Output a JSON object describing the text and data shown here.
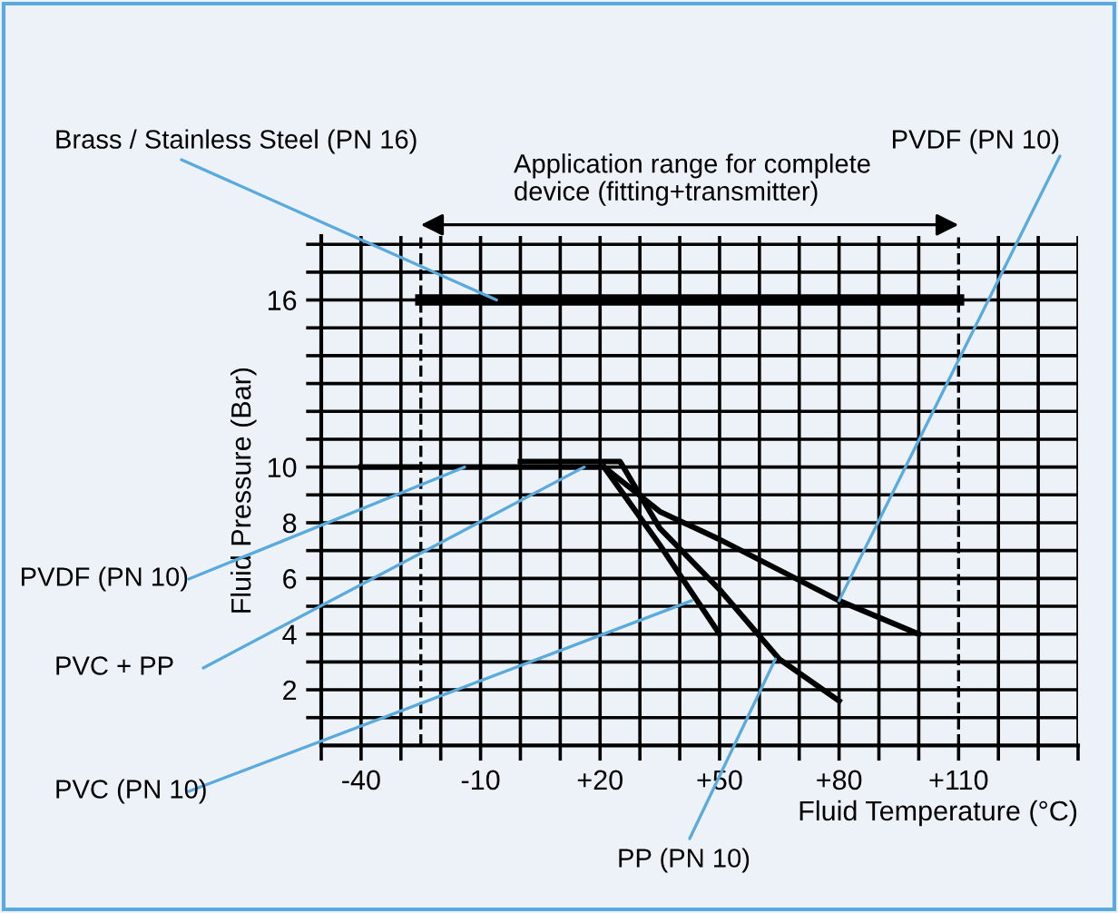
{
  "chart_data": {
    "type": "line",
    "xlabel": "Fluid Temperature (°C)",
    "ylabel": "Fluid Pressure (Bar)",
    "series": [
      {
        "color": "#000000",
        "x": [
          -25,
          110
        ],
        "values": [
          16,
          16
        ]
      },
      {
        "color": "#000000",
        "x": [
          -40,
          21,
          35,
          50,
          65,
          80,
          100
        ],
        "values": [
          10,
          10,
          8.4,
          7.4,
          6.3,
          5.2,
          4
        ]
      },
      {
        "color": "#000000",
        "x": [
          0,
          25,
          35,
          50,
          65,
          80
        ],
        "values": [
          10.2,
          10.2,
          7.8,
          5.6,
          3.1,
          1.6
        ]
      },
      {
        "color": "#000000",
        "x": [
          21,
          35,
          50
        ],
        "values": [
          10,
          7.2,
          4
        ]
      }
    ],
    "annotations": [
      {
        "text": "Brass / Stainless Steel (PN 16)",
        "x": -6,
        "y": 16
      },
      {
        "text": "PVDF (PN 10)",
        "x": 80,
        "y": 5.2
      },
      {
        "text": "PVDF (PN 10)",
        "x": -14,
        "y": 10
      },
      {
        "text": "PVC + PP",
        "x": 16,
        "y": 10
      },
      {
        "text": "PVC (PN 10)",
        "x": 43,
        "y": 5.2
      },
      {
        "text": "PP (PN 10)",
        "x": 64,
        "y": 3.1
      },
      "Application range for complete\ndevice (fitting+transmitter)"
    ],
    "ref_lines": [
      {
        "axis": "x",
        "value": -25,
        "line_style": "dashed"
      },
      {
        "axis": "x",
        "value": 110,
        "line_style": "dashed"
      }
    ],
    "xlim": [
      -50,
      140
    ],
    "ylim": [
      0,
      18.3
    ],
    "xticks": [
      {
        "value": -50,
        "label": null
      },
      "-40",
      {
        "value": -30,
        "label": null
      },
      {
        "value": -20,
        "label": null
      },
      {
        "value": -10,
        "label": "-10"
      },
      {
        "value": 0,
        "label": null
      },
      {
        "value": 10,
        "label": null
      },
      {
        "value": 20,
        "label": "+20"
      },
      {
        "value": 30,
        "label": null
      },
      {
        "value": 40,
        "label": null
      },
      {
        "value": 50,
        "label": "+50"
      },
      {
        "value": 60,
        "label": null
      },
      {
        "value": 70,
        "label": null
      },
      {
        "value": 80,
        "label": "+80"
      },
      {
        "value": 90,
        "label": null
      },
      {
        "value": 100,
        "label": null
      },
      {
        "value": 110,
        "label": "+110"
      },
      {
        "value": 120,
        "label": null
      },
      {
        "value": 130,
        "label": null
      },
      {
        "value": 140,
        "label": null
      }
    ],
    "yticks": [
      {
        "value": 1,
        "label": null
      },
      2,
      {
        "value": 3,
        "label": null
      },
      4,
      {
        "value": 5,
        "label": null
      },
      6,
      {
        "value": 7,
        "label": null
      },
      8,
      {
        "value": 9,
        "label": null
      },
      10,
      {
        "value": 11,
        "label": null
      },
      {
        "value": 12,
        "label": null
      },
      {
        "value": 13,
        "label": null
      },
      {
        "value": 14,
        "label": null
      },
      {
        "value": 15,
        "label": null
      },
      16,
      {
        "value": 17,
        "label": null
      },
      {
        "value": 18,
        "label": null
      }
    ],
    "grid": true,
    "marker": "none",
    "line_style": "solid",
    "legend": false
  }
}
